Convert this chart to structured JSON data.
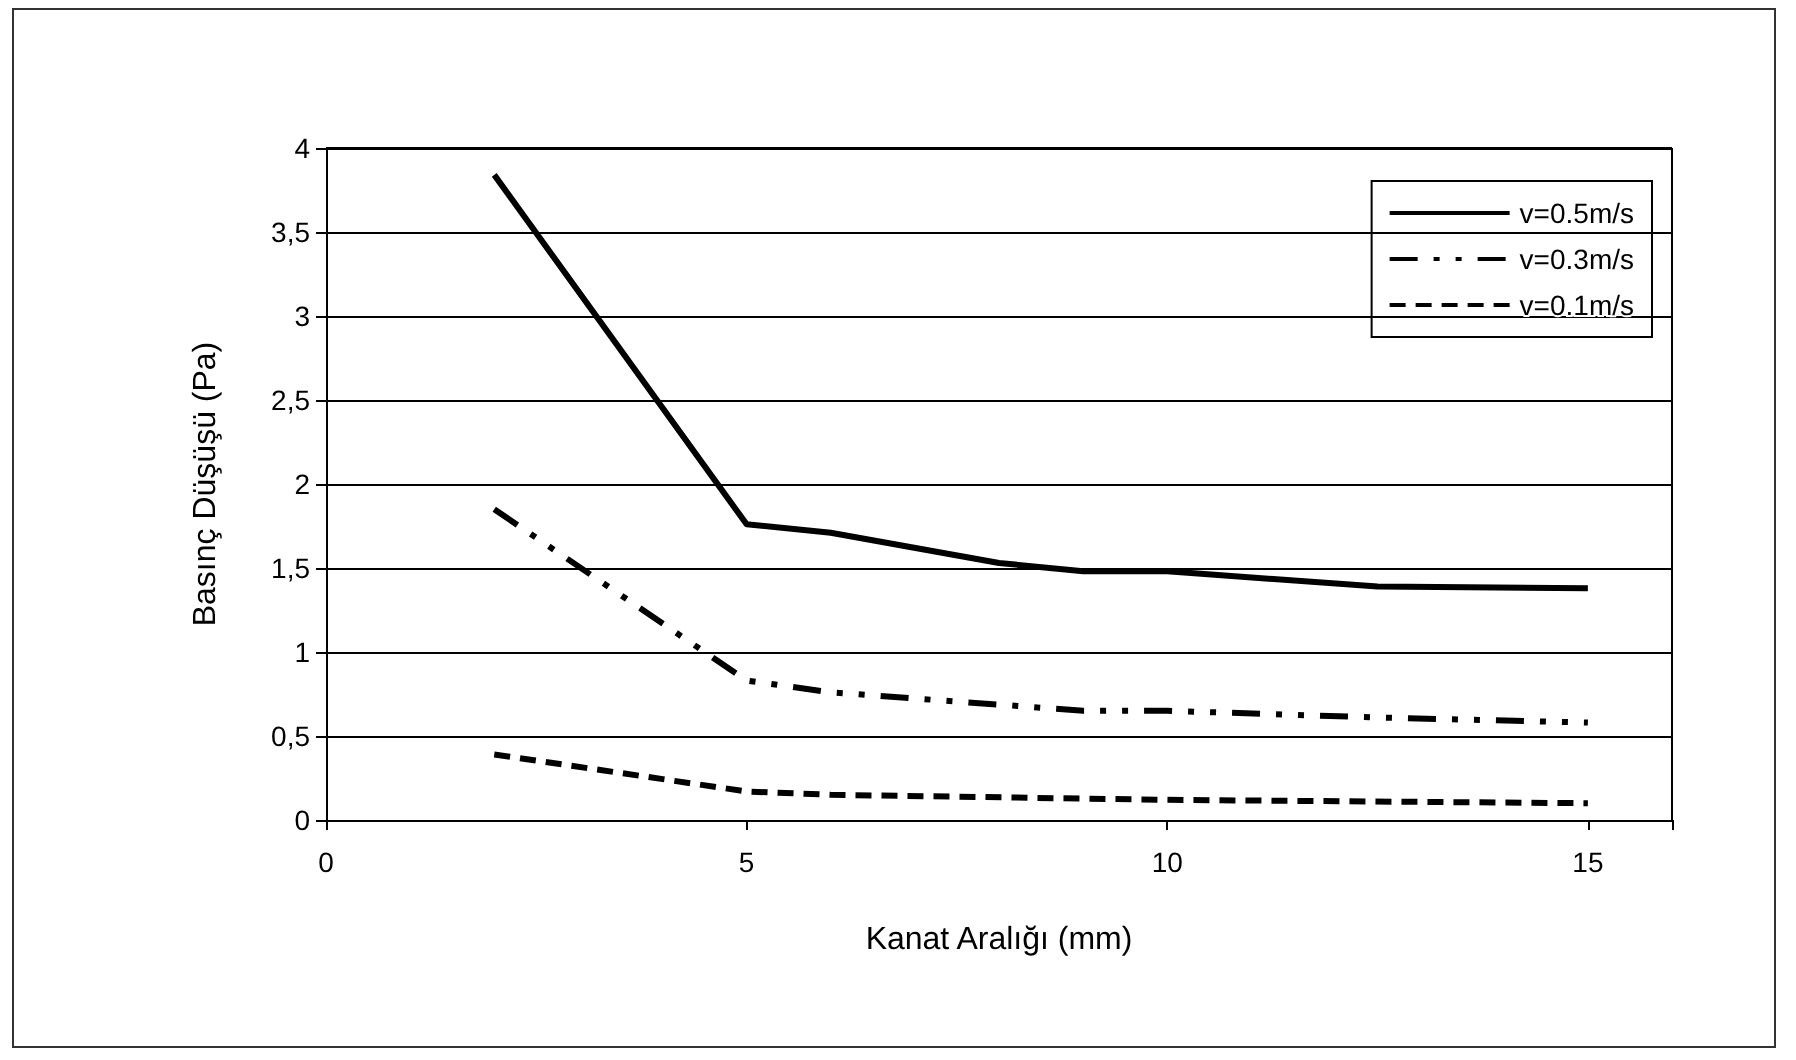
{
  "chart_data": {
    "type": "line",
    "xlabel": "Kanat Aralığı (mm)",
    "ylabel": "Basınç Düşüşü (Pa)",
    "xlim": [
      0,
      16
    ],
    "xticks": [
      0,
      5,
      10,
      15,
      {
        "value": 16,
        "label": null
      }
    ],
    "ylim": [
      0,
      4
    ],
    "yticks": [
      0,
      {
        "value": 0.5,
        "label": "0,5"
      },
      1,
      {
        "value": 1.5,
        "label": "1,5"
      },
      2,
      {
        "value": 2.5,
        "label": "2,5"
      },
      3,
      {
        "value": 3.5,
        "label": "3,5"
      },
      4
    ],
    "grid": "y",
    "legend": "top right",
    "marker": "none",
    "series": [
      {
        "name": "v=0.5m/s",
        "color": "#000000",
        "line_style": "solid",
        "x": [
          2,
          5,
          6,
          8,
          9,
          10,
          12.5,
          15
        ],
        "values": [
          3.84,
          1.76,
          1.71,
          1.53,
          1.48,
          1.48,
          1.39,
          1.38
        ]
      },
      {
        "name": "v=0.3m/s",
        "color": "#000000",
        "line_style": "dashdot",
        "x": [
          2,
          5,
          6,
          9,
          10,
          12.5,
          15
        ],
        "values": [
          1.85,
          0.83,
          0.76,
          0.65,
          0.65,
          0.61,
          0.58
        ]
      },
      {
        "name": "v=0.1m/s",
        "color": "#000000",
        "line_style": "dashed",
        "x": [
          2,
          5,
          6,
          10,
          15
        ],
        "values": [
          0.39,
          0.17,
          0.15,
          0.12,
          0.1
        ]
      }
    ]
  }
}
